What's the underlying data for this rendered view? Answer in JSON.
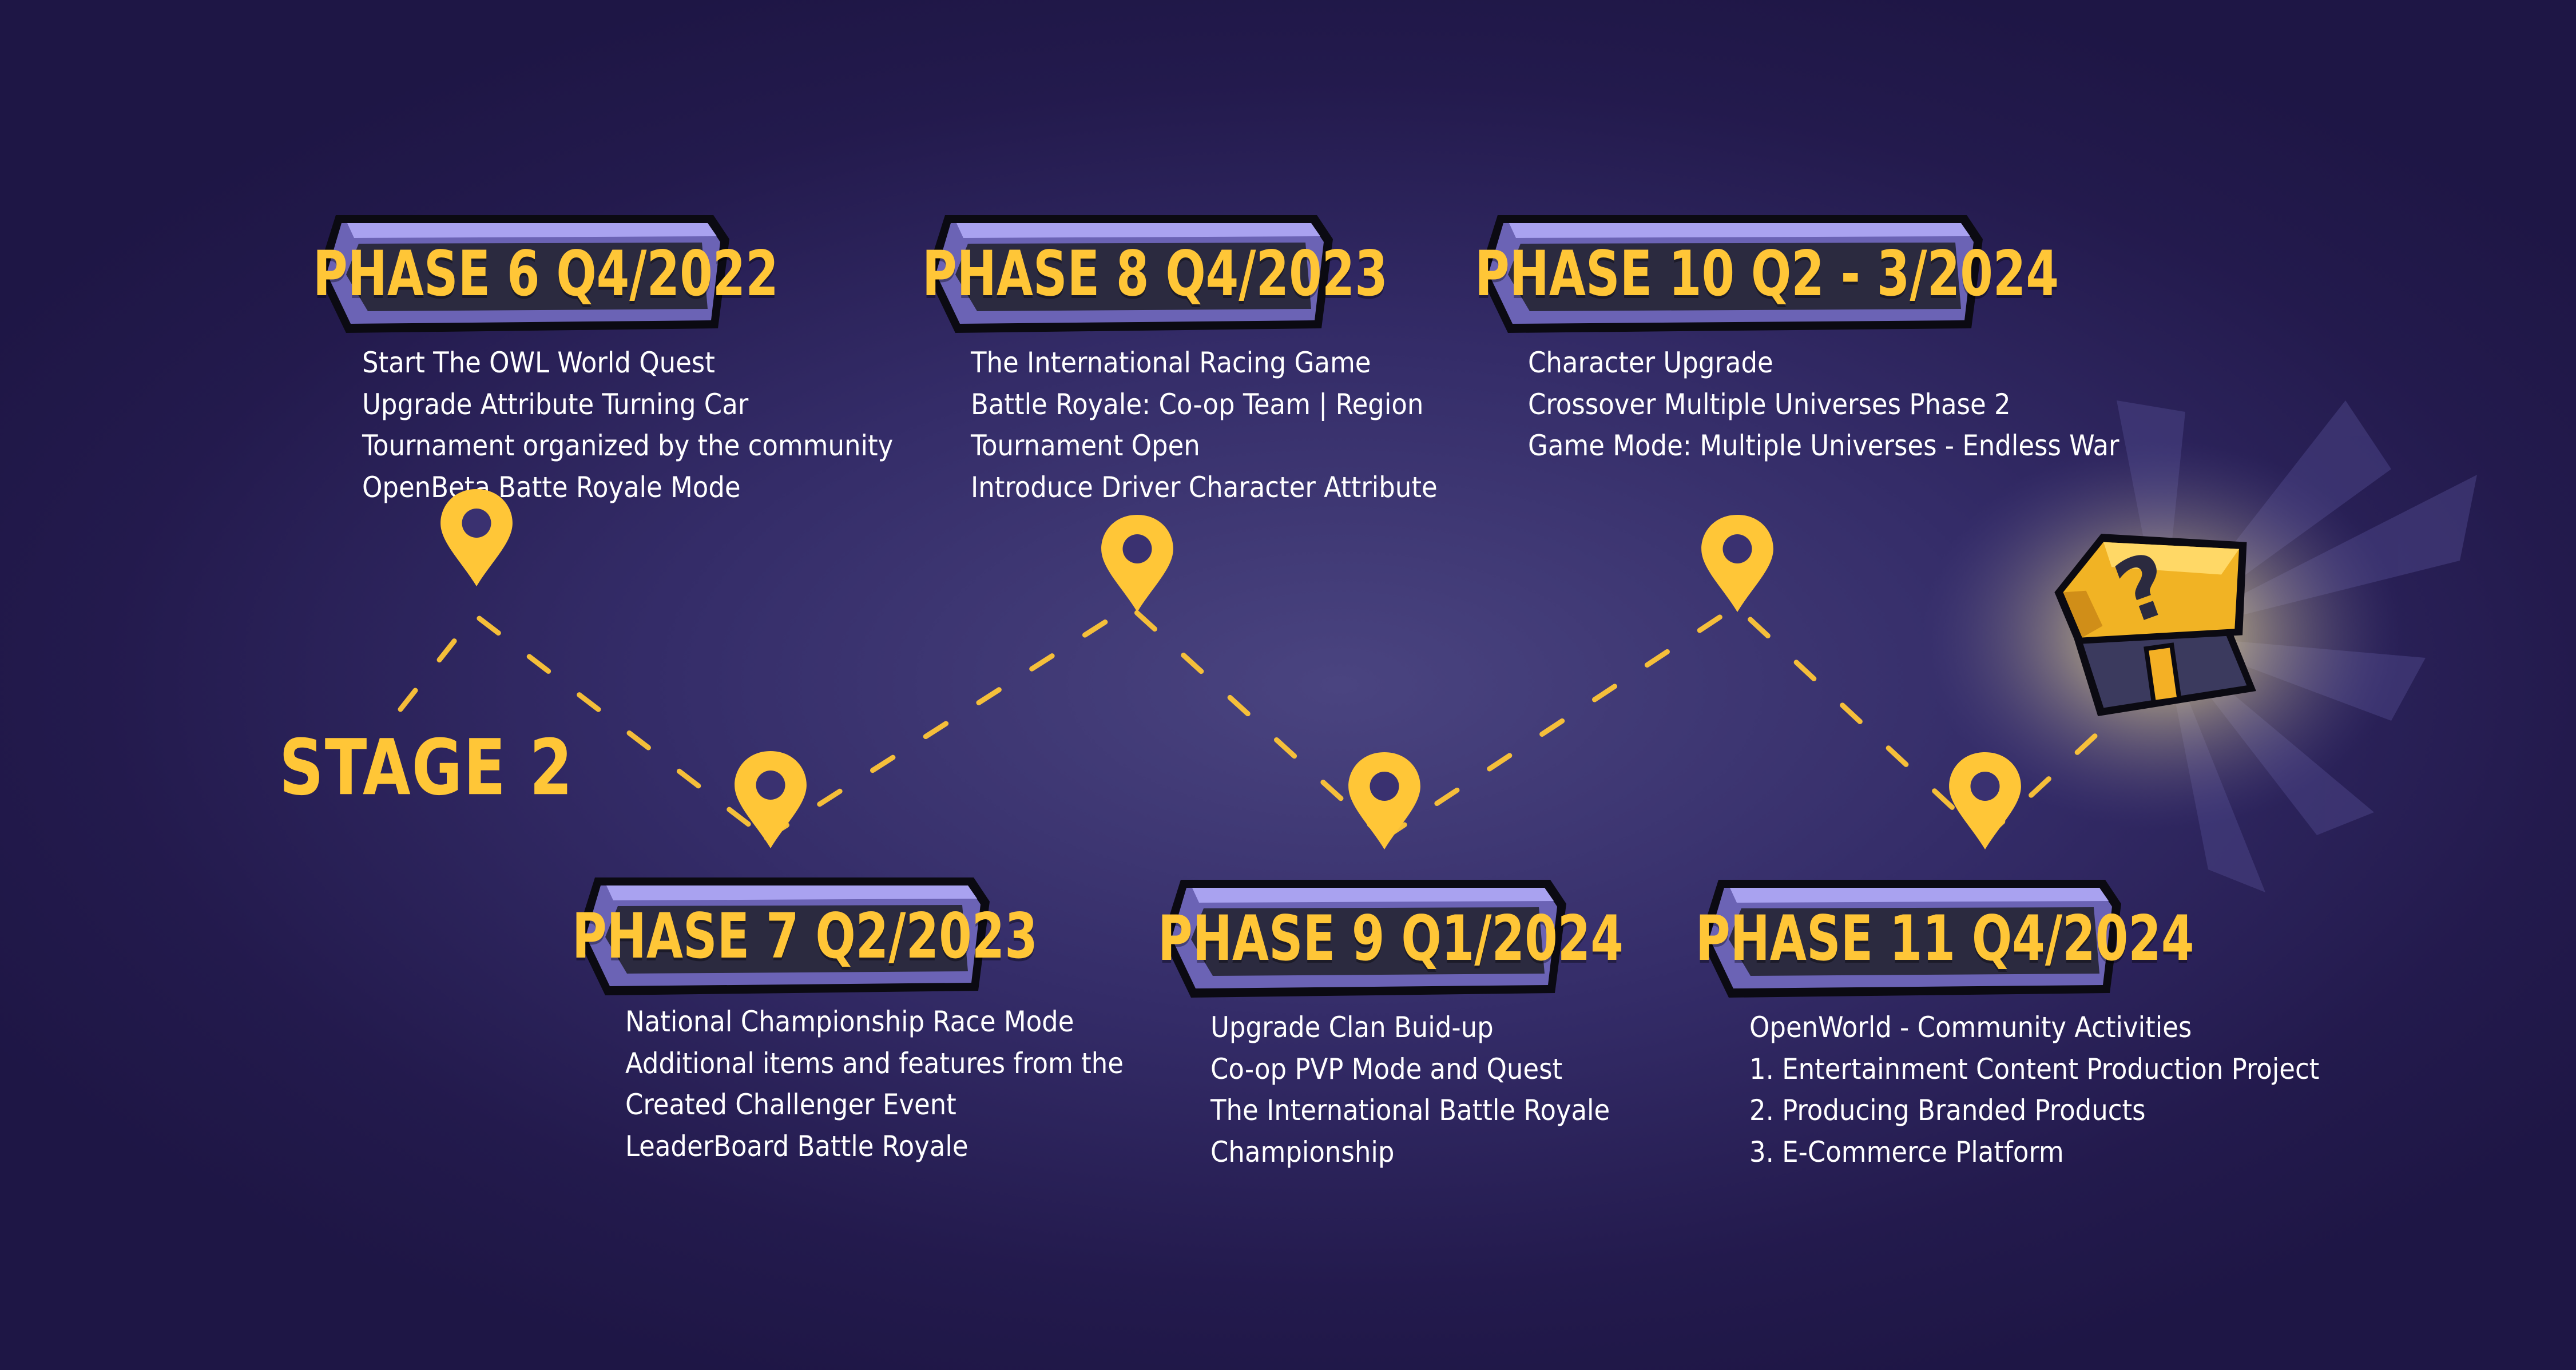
{
  "stage": {
    "label": "STAGE 2"
  },
  "phases": [
    {
      "title": "PHASE 6 Q4/2022",
      "items": [
        "Start The OWL World Quest",
        "Upgrade Attribute Turning Car",
        "Tournament organized by the community",
        "OpenBeta Batte Royale Mode"
      ]
    },
    {
      "title": "PHASE 7 Q2/2023",
      "items": [
        "National Championship Race Mode",
        "Additional items and features from the",
        "Created Challenger Event",
        "LeaderBoard Battle Royale"
      ]
    },
    {
      "title": "PHASE 8 Q4/2023",
      "items": [
        "The International Racing Game",
        "Battle Royale: Co-op Team | Region",
        "Tournament Open",
        "Introduce Driver Character Attribute"
      ]
    },
    {
      "title": "PHASE 9 Q1/2024",
      "items": [
        "Upgrade Clan Buid-up",
        "Co-op PVP Mode and Quest",
        "The International Battle Royale",
        "Championship"
      ]
    },
    {
      "title": "PHASE 10 Q2 - 3/2024",
      "items": [
        "Character Upgrade",
        "Crossover Multiple Universes Phase 2",
        "Game Mode: Multiple Universes - Endless War"
      ]
    },
    {
      "title": "PHASE 11 Q4/2024",
      "items": [
        "OpenWorld - Community Activities",
        "1. Entertainment Content Production Project",
        "2. Producing Branded Products",
        "3. E-Commerce Platform"
      ]
    }
  ],
  "icons": {
    "marker": "map-pin-icon",
    "reward": "mystery-chest-icon"
  },
  "colors": {
    "background": "#2b2358",
    "accent": "#ffc637",
    "badge_fill": "#2b2a3f",
    "badge_rim": "#6b63b5",
    "badge_highlight": "#a9a2f0",
    "text": "#ffffff"
  }
}
